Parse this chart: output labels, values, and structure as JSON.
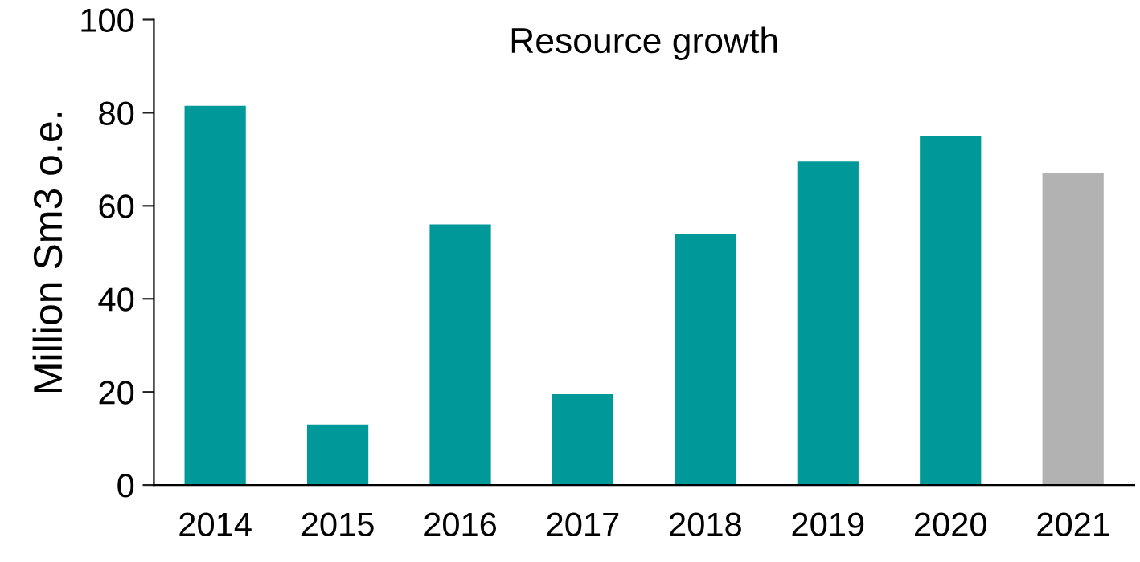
{
  "chart_data": {
    "type": "bar",
    "title": "Resource growth",
    "ylabel": "Million Sm3 o.e.",
    "categories": [
      "2014",
      "2015",
      "2016",
      "2017",
      "2018",
      "2019",
      "2020",
      "2021"
    ],
    "values": [
      81.5,
      13,
      56,
      19.5,
      54,
      69.5,
      75,
      67
    ],
    "colors": [
      "#009999",
      "#009999",
      "#009999",
      "#009999",
      "#009999",
      "#009999",
      "#009999",
      "#b2b2b2"
    ],
    "ylim": [
      0,
      100
    ],
    "yticks": [
      0,
      20,
      40,
      60,
      80,
      100
    ],
    "grid": false,
    "legend": false
  }
}
